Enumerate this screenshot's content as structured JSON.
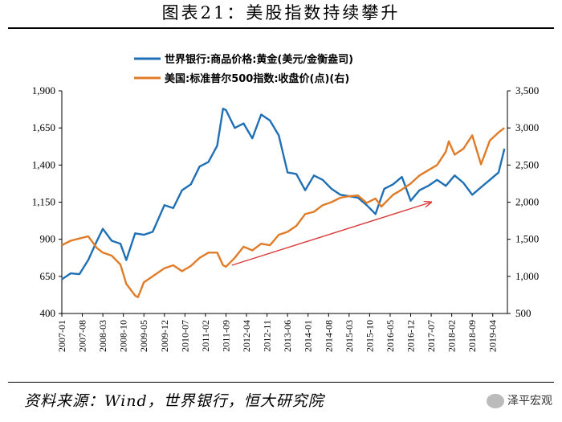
{
  "figure": {
    "title": "图表21：美股指数持续攀升",
    "source": "资料来源：Wind，世界银行，恒大研究院",
    "watermark": "泽平宏观",
    "watermark_icon": "wechat-icon"
  },
  "chart_data": {
    "type": "line",
    "title": "",
    "xlabel": "",
    "ylabel": "",
    "left_axis": {
      "ylim": [
        400,
        1900
      ],
      "ticks": [
        400,
        650,
        900,
        1150,
        1400,
        1650,
        1900
      ],
      "tick_labels": [
        "400",
        "650",
        "900",
        "1,150",
        "1,400",
        "1,650",
        "1,900"
      ]
    },
    "right_axis": {
      "ylim": [
        500,
        3500
      ],
      "ticks": [
        500,
        1000,
        1500,
        2000,
        2500,
        3000,
        3500
      ],
      "tick_labels": [
        "500",
        "1,000",
        "1,500",
        "2,000",
        "2,500",
        "3,000",
        "3,500"
      ]
    },
    "x_ticks": [
      "2007-01",
      "2007-08",
      "2008-03",
      "2008-10",
      "2009-05",
      "2009-12",
      "2010-07",
      "2011-02",
      "2011-09",
      "2012-04",
      "2012-11",
      "2013-06",
      "2014-01",
      "2014-08",
      "2015-03",
      "2015-10",
      "2016-05",
      "2016-12",
      "2017-07",
      "2018-02",
      "2018-09",
      "2019-04"
    ],
    "grid": false,
    "legend_position": "top",
    "series": [
      {
        "name": "世界银行:商品价格:黄金(美元/金衡盎司)",
        "axis": "left",
        "color": "#1f6fb5",
        "x": [
          "2007-01",
          "2007-04",
          "2007-07",
          "2007-10",
          "2008-01",
          "2008-03",
          "2008-06",
          "2008-09",
          "2008-11",
          "2009-02",
          "2009-05",
          "2009-08",
          "2009-12",
          "2010-03",
          "2010-06",
          "2010-09",
          "2010-12",
          "2011-03",
          "2011-06",
          "2011-08",
          "2011-09",
          "2011-12",
          "2012-03",
          "2012-06",
          "2012-09",
          "2012-12",
          "2013-03",
          "2013-06",
          "2013-09",
          "2013-12",
          "2014-03",
          "2014-06",
          "2014-09",
          "2014-12",
          "2015-03",
          "2015-06",
          "2015-09",
          "2015-12",
          "2016-03",
          "2016-06",
          "2016-09",
          "2016-12",
          "2017-03",
          "2017-06",
          "2017-09",
          "2017-12",
          "2018-03",
          "2018-06",
          "2018-09",
          "2018-12",
          "2019-03",
          "2019-06",
          "2019-08"
        ],
        "values": [
          630,
          670,
          665,
          760,
          890,
          970,
          890,
          870,
          760,
          940,
          930,
          950,
          1130,
          1110,
          1230,
          1270,
          1390,
          1420,
          1530,
          1780,
          1770,
          1650,
          1680,
          1580,
          1740,
          1700,
          1600,
          1350,
          1340,
          1230,
          1330,
          1300,
          1240,
          1200,
          1190,
          1180,
          1130,
          1070,
          1240,
          1270,
          1320,
          1160,
          1230,
          1260,
          1300,
          1260,
          1330,
          1280,
          1200,
          1250,
          1300,
          1350,
          1510
        ]
      },
      {
        "name": "美国:标准普尔500指数:收盘价(点)(右)",
        "axis": "right",
        "color": "#e07b28",
        "x": [
          "2007-01",
          "2007-04",
          "2007-07",
          "2007-10",
          "2008-01",
          "2008-03",
          "2008-06",
          "2008-09",
          "2008-11",
          "2009-02",
          "2009-03",
          "2009-05",
          "2009-08",
          "2009-12",
          "2010-03",
          "2010-06",
          "2010-09",
          "2010-12",
          "2011-03",
          "2011-06",
          "2011-08",
          "2011-09",
          "2011-12",
          "2012-03",
          "2012-06",
          "2012-09",
          "2012-12",
          "2013-03",
          "2013-06",
          "2013-09",
          "2013-12",
          "2014-03",
          "2014-06",
          "2014-09",
          "2014-12",
          "2015-03",
          "2015-06",
          "2015-09",
          "2015-12",
          "2016-02",
          "2016-06",
          "2016-09",
          "2016-12",
          "2017-03",
          "2017-06",
          "2017-09",
          "2017-12",
          "2018-01",
          "2018-03",
          "2018-06",
          "2018-09",
          "2018-12",
          "2019-03",
          "2019-06",
          "2019-08"
        ],
        "values": [
          1420,
          1480,
          1510,
          1540,
          1380,
          1320,
          1280,
          1160,
          900,
          740,
          720,
          920,
          1000,
          1110,
          1150,
          1070,
          1140,
          1250,
          1320,
          1320,
          1150,
          1130,
          1250,
          1400,
          1350,
          1440,
          1420,
          1560,
          1600,
          1680,
          1840,
          1870,
          1960,
          2000,
          2060,
          2080,
          2090,
          1990,
          2050,
          1940,
          2100,
          2170,
          2250,
          2360,
          2430,
          2500,
          2680,
          2820,
          2640,
          2720,
          2900,
          2510,
          2830,
          2940,
          3000
        ]
      }
    ],
    "annotations": [
      {
        "type": "arrow",
        "color": "#d93a3a",
        "from": [
          "2011-11",
          1150
        ],
        "to": [
          "2017-07",
          2000
        ],
        "axis": "right"
      }
    ]
  }
}
